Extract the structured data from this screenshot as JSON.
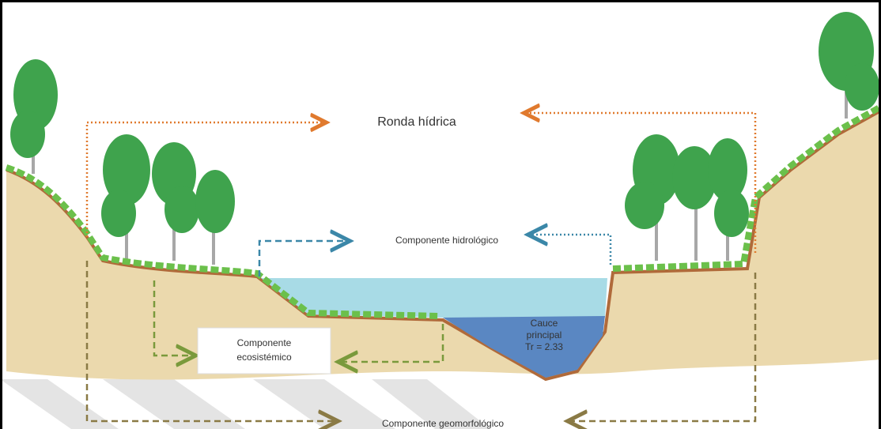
{
  "labels": {
    "ronda": "Ronda hídrica",
    "hidrologico": "Componente hidrológico",
    "ecosistemico": [
      "Componente",
      "ecosistémico"
    ],
    "cauce": [
      "Cauce",
      "principal",
      "Tr = 2.33"
    ],
    "geomorfologico": "Componente geomorfológico"
  }
}
